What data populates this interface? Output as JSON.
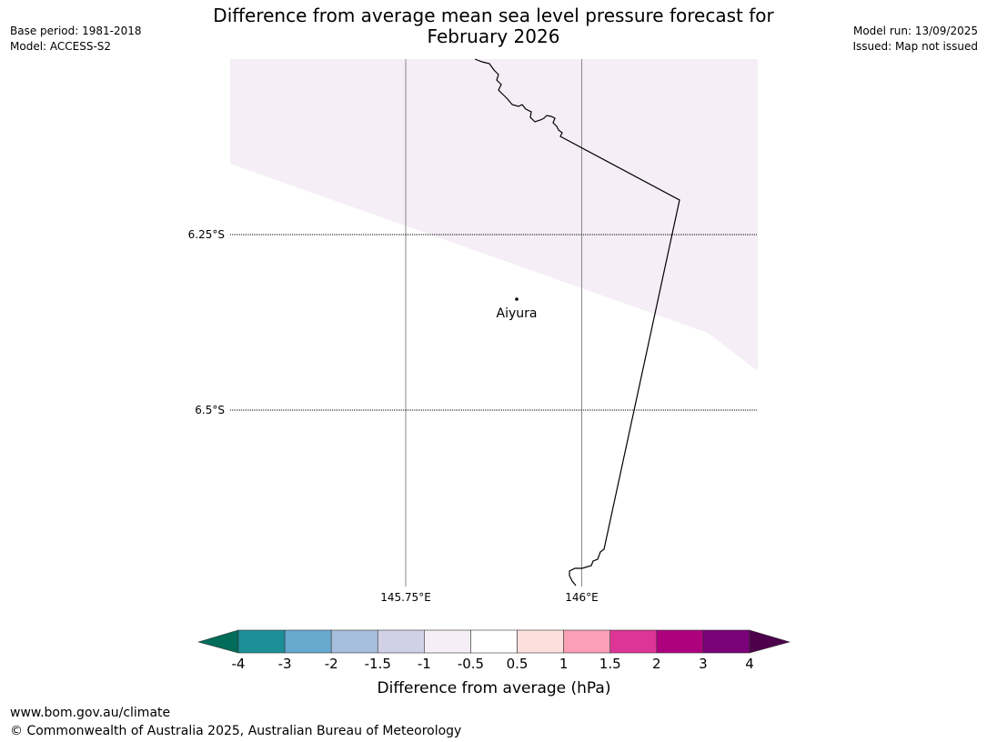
{
  "header": {
    "title_line1": "Difference from average mean sea level pressure forecast for",
    "title_line2": "February 2026",
    "base_period": "Base period: 1981-2018",
    "model": "Model: ACCESS-S2",
    "model_run": "Model run: 13/09/2025",
    "issued": "Issued: Map not issued"
  },
  "map": {
    "latitude_labels": [
      "6.25°S",
      "6.5°S"
    ],
    "longitude_labels": [
      "145.75°E",
      "146°E"
    ],
    "place": {
      "name": "Aiyura"
    },
    "shaded_category": "-1 to -0.5",
    "shaded_color": "#f5eef6"
  },
  "colorbar": {
    "label": "Difference from average (hPa)",
    "ticks": [
      "-4",
      "-3",
      "-2",
      "-1.5",
      "-1",
      "-0.5",
      "0.5",
      "1",
      "1.5",
      "2",
      "3",
      "4"
    ],
    "under_color": "#016c59",
    "over_color": "#4d004b",
    "colors": [
      "#1c9099",
      "#67a9cf",
      "#a6bddb",
      "#d0d1e6",
      "#f5eef6",
      "#ffffff",
      "#fde0dd",
      "#fa9fb5",
      "#dd3497",
      "#ae017e",
      "#7a0177"
    ]
  },
  "footer": {
    "url": "www.bom.gov.au/climate",
    "copyright": "© Commonwealth of Australia 2025, Australian Bureau of Meteorology"
  }
}
